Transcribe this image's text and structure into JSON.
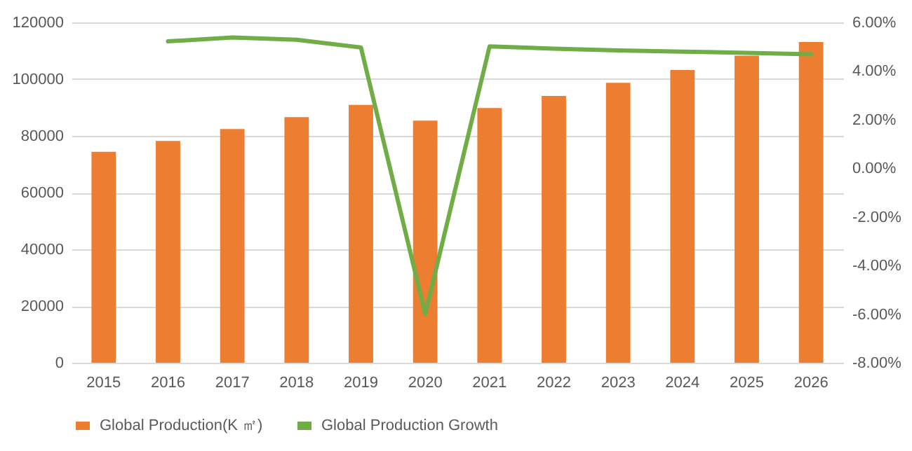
{
  "chart_data": {
    "type": "bar",
    "categories": [
      "2015",
      "2016",
      "2017",
      "2018",
      "2019",
      "2020",
      "2021",
      "2022",
      "2023",
      "2024",
      "2025",
      "2026"
    ],
    "series": [
      {
        "name": "Global Production(K ㎡)",
        "color": "#ed7d31",
        "values": [
          74400,
          78200,
          82400,
          86600,
          90900,
          85400,
          89800,
          94100,
          98700,
          103200,
          108300,
          113100
        ]
      },
      {
        "name": "Global Production Growth",
        "type": "line",
        "axis": "y2",
        "color": "#70ad47",
        "values": [
          null,
          5.22,
          5.38,
          5.29,
          4.97,
          -6.0,
          5.01,
          4.92,
          4.85,
          4.8,
          4.75,
          4.69
        ]
      }
    ],
    "ylim": [
      0,
      120000
    ],
    "yticks": [
      0,
      20000,
      40000,
      60000,
      80000,
      100000,
      120000
    ],
    "y2lim": [
      -8,
      6
    ],
    "y2ticks": [
      {
        "value": -8,
        "label": "-8.00%"
      },
      {
        "value": -6,
        "label": "-6.00%"
      },
      {
        "value": -4,
        "label": "-4.00%"
      },
      {
        "value": -2,
        "label": "-2.00%"
      },
      {
        "value": 0,
        "label": "0.00%"
      },
      {
        "value": 2,
        "label": "2.00%"
      },
      {
        "value": 4,
        "label": "4.00%"
      },
      {
        "value": 6,
        "label": "6.00%"
      }
    ],
    "grid": "y",
    "legend": "bottom"
  }
}
